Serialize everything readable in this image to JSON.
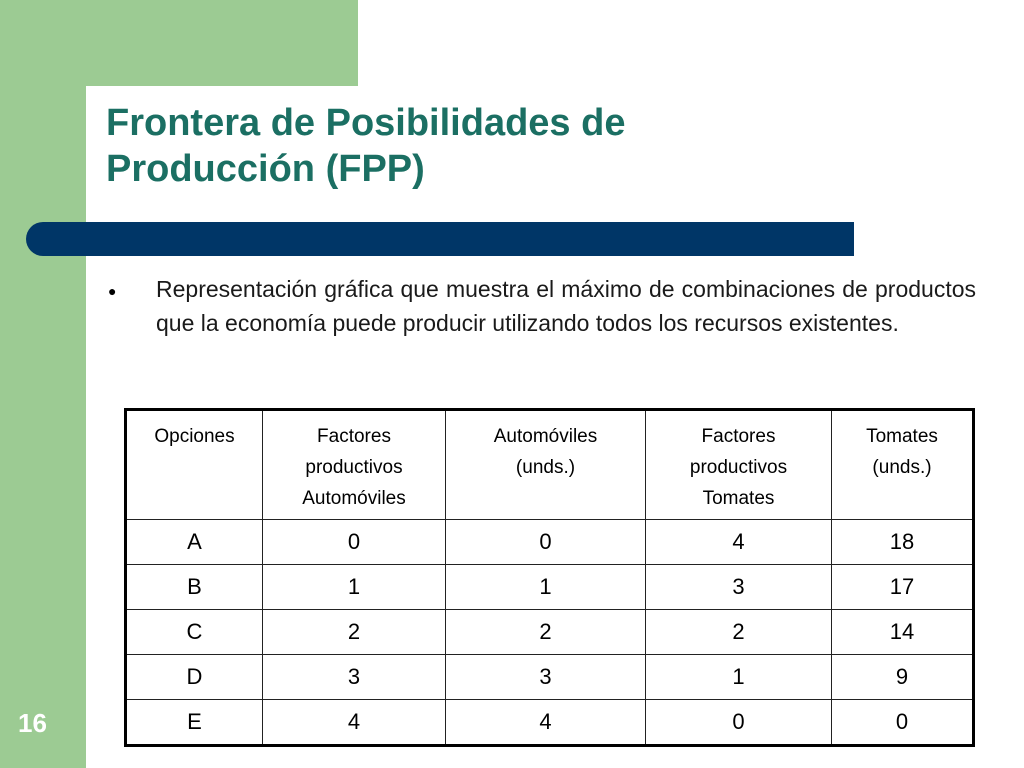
{
  "slide": {
    "title_lines": [
      "Frontera de Posibilidades de",
      "Producción (FPP)"
    ],
    "bullet": "Representación gráfica que muestra el máximo de combinaciones de productos que la economía puede producir utilizando todos los recursos existentes.",
    "slide_number": "16"
  },
  "table": {
    "headers": [
      [
        "Opciones"
      ],
      [
        "Factores",
        "productivos",
        "Automóviles"
      ],
      [
        "Automóviles",
        "(unds.)"
      ],
      [
        "Factores",
        "productivos",
        "Tomates"
      ],
      [
        "Tomates",
        "(unds.)"
      ]
    ],
    "rows": [
      [
        "A",
        "0",
        "0",
        "4",
        "18"
      ],
      [
        "B",
        "1",
        "1",
        "3",
        "17"
      ],
      [
        "C",
        "2",
        "2",
        "2",
        "14"
      ],
      [
        "D",
        "3",
        "3",
        "1",
        "9"
      ],
      [
        "E",
        "4",
        "4",
        "0",
        "0"
      ]
    ]
  },
  "colors": {
    "accent_green": "#9ccb93",
    "accent_navy": "#003667",
    "title_color": "#1b6f63"
  }
}
